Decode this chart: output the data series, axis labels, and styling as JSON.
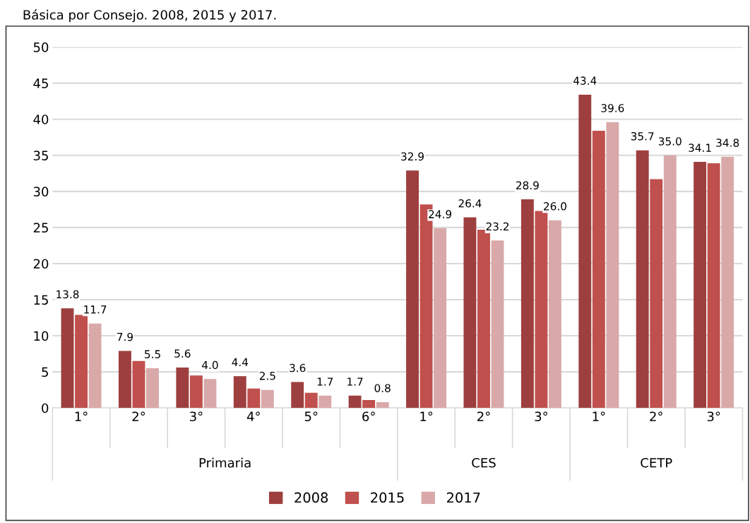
{
  "chart_data": {
    "type": "bar",
    "title": "Básica por Consejo. 2008, 2015 y 2017.",
    "categories": [
      "1°",
      "2°",
      "3°",
      "4°",
      "5°",
      "6°",
      "1°",
      "2°",
      "3°",
      "1°",
      "2°",
      "3°"
    ],
    "annotations": [
      "Primaria",
      "CES",
      "CETP"
    ],
    "series": [
      {
        "name": "2008",
        "color": "#9e3f3f",
        "values": [
          13.8,
          7.9,
          5.6,
          4.4,
          3.6,
          1.7,
          32.9,
          26.4,
          28.9,
          43.4,
          35.7,
          34.1
        ],
        "value_labels": [
          "13.8",
          "7.9",
          "5.6",
          "4.4",
          "3.6",
          "1.7",
          "32.9",
          "26.4",
          "28.9",
          "43.4",
          "35.7",
          "34.1"
        ]
      },
      {
        "name": "2015",
        "color": "#c0504d",
        "values": [
          12.9,
          6.5,
          4.5,
          2.7,
          2.1,
          1.1,
          28.2,
          24.7,
          27.3,
          38.4,
          31.7,
          33.9
        ]
      },
      {
        "name": "2017",
        "color": "#d9a9a9",
        "values": [
          11.7,
          5.5,
          4.0,
          2.5,
          1.7,
          0.8,
          24.9,
          23.2,
          26.0,
          39.6,
          35.0,
          34.8
        ],
        "value_labels": [
          "11.7",
          "5.5",
          "4.0",
          "2.5",
          "1.7",
          "0.8",
          "24.9",
          "23.2",
          "26.0",
          "39.6",
          "35.0",
          "34.8"
        ]
      }
    ],
    "ylim": [
      0,
      50
    ],
    "yticks": [
      0,
      5,
      10,
      15,
      20,
      25,
      30,
      35,
      40,
      45,
      50
    ],
    "grid": "y",
    "legend": "bottom"
  }
}
